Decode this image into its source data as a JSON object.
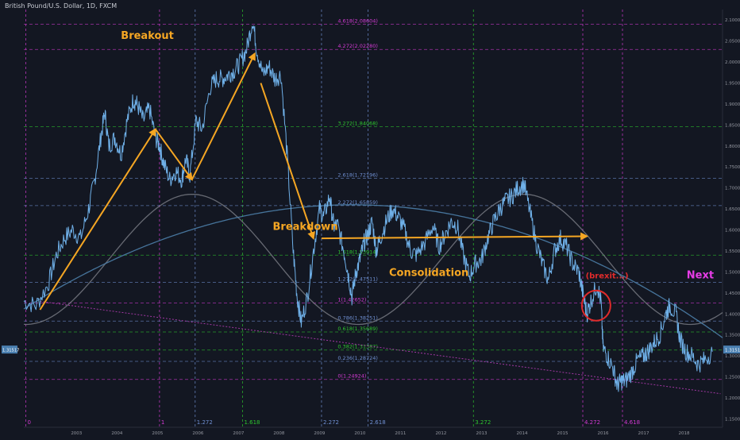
{
  "header": {
    "title": "British Pound/U.S. Dollar, 1D, FXCM"
  },
  "colors": {
    "bg": "#131722",
    "price": "#6fb0e8",
    "arrow": "#f5a623",
    "annotation": "#f5a623",
    "next": "#e63ce6",
    "brexit": "#e02b2b",
    "fib_green": "#2ec42e",
    "fib_magenta": "#d33ad3",
    "fib_blue": "#6f8fd1",
    "fib_gray": "#8a8fa0",
    "sine": "#7d8088",
    "curve_blue": "#4d7ea8",
    "trendline": "#b03bb0"
  },
  "chart_data": {
    "type": "line",
    "title": "British Pound/U.S. Dollar, 1D, FXCM",
    "xlim": [
      2002.2,
      2019.45
    ],
    "ylim": [
      1.13,
      2.125
    ],
    "x_ticks": [
      "2003",
      "2004",
      "2005",
      "2006",
      "2007",
      "2008",
      "2009",
      "2010",
      "2011",
      "2012",
      "2013",
      "2014",
      "2015",
      "2016",
      "2017",
      "2018"
    ],
    "y_ticks": [
      "2.10000",
      "2.05000",
      "2.00000",
      "1.95000",
      "1.90000",
      "1.85000",
      "1.80000",
      "1.75000",
      "1.70000",
      "1.65000",
      "1.60000",
      "1.55000",
      "1.50000",
      "1.45000",
      "1.40000",
      "1.35000",
      "1.30000",
      "1.25000",
      "1.20000",
      "1.15000"
    ],
    "price_tag": "1.31517",
    "series": [
      {
        "values": [
          [
            2002.2,
            1.43
          ],
          [
            2002.5,
            1.42
          ],
          [
            2002.8,
            1.47
          ],
          [
            2003.0,
            1.54
          ],
          [
            2003.2,
            1.58
          ],
          [
            2003.4,
            1.6
          ],
          [
            2003.6,
            1.58
          ],
          [
            2003.8,
            1.65
          ],
          [
            2003.95,
            1.72
          ],
          [
            2004.1,
            1.82
          ],
          [
            2004.2,
            1.88
          ],
          [
            2004.3,
            1.8
          ],
          [
            2004.45,
            1.82
          ],
          [
            2004.6,
            1.78
          ],
          [
            2004.75,
            1.86
          ],
          [
            2004.9,
            1.91
          ],
          [
            2005.0,
            1.9
          ],
          [
            2005.15,
            1.86
          ],
          [
            2005.3,
            1.89
          ],
          [
            2005.45,
            1.82
          ],
          [
            2005.55,
            1.8
          ],
          [
            2005.65,
            1.76
          ],
          [
            2005.8,
            1.72
          ],
          [
            2005.95,
            1.74
          ],
          [
            2006.1,
            1.72
          ],
          [
            2006.2,
            1.77
          ],
          [
            2006.3,
            1.73
          ],
          [
            2006.45,
            1.86
          ],
          [
            2006.6,
            1.84
          ],
          [
            2006.8,
            1.94
          ],
          [
            2006.95,
            1.96
          ],
          [
            2007.1,
            1.96
          ],
          [
            2007.25,
            1.97
          ],
          [
            2007.4,
            1.98
          ],
          [
            2007.55,
            2.0
          ],
          [
            2007.7,
            2.03
          ],
          [
            2007.85,
            2.1
          ],
          [
            2007.95,
            2.03
          ],
          [
            2008.1,
            1.97
          ],
          [
            2008.25,
            1.99
          ],
          [
            2008.4,
            1.96
          ],
          [
            2008.55,
            1.97
          ],
          [
            2008.7,
            1.78
          ],
          [
            2008.85,
            1.55
          ],
          [
            2008.95,
            1.44
          ],
          [
            2009.05,
            1.38
          ],
          [
            2009.2,
            1.44
          ],
          [
            2009.35,
            1.55
          ],
          [
            2009.5,
            1.65
          ],
          [
            2009.6,
            1.63
          ],
          [
            2009.75,
            1.68
          ],
          [
            2009.85,
            1.61
          ],
          [
            2009.95,
            1.61
          ],
          [
            2010.1,
            1.55
          ],
          [
            2010.2,
            1.5
          ],
          [
            2010.3,
            1.44
          ],
          [
            2010.4,
            1.5
          ],
          [
            2010.5,
            1.53
          ],
          [
            2010.6,
            1.57
          ],
          [
            2010.7,
            1.59
          ],
          [
            2010.8,
            1.62
          ],
          [
            2010.9,
            1.55
          ],
          [
            2011.0,
            1.58
          ],
          [
            2011.15,
            1.62
          ],
          [
            2011.3,
            1.65
          ],
          [
            2011.45,
            1.63
          ],
          [
            2011.6,
            1.6
          ],
          [
            2011.75,
            1.55
          ],
          [
            2011.9,
            1.54
          ],
          [
            2012.1,
            1.57
          ],
          [
            2012.3,
            1.61
          ],
          [
            2012.45,
            1.56
          ],
          [
            2012.6,
            1.59
          ],
          [
            2012.75,
            1.62
          ],
          [
            2012.9,
            1.61
          ],
          [
            2013.05,
            1.54
          ],
          [
            2013.2,
            1.49
          ],
          [
            2013.35,
            1.52
          ],
          [
            2013.5,
            1.53
          ],
          [
            2013.65,
            1.58
          ],
          [
            2013.8,
            1.62
          ],
          [
            2013.95,
            1.65
          ],
          [
            2014.1,
            1.67
          ],
          [
            2014.25,
            1.68
          ],
          [
            2014.4,
            1.7
          ],
          [
            2014.55,
            1.71
          ],
          [
            2014.7,
            1.64
          ],
          [
            2014.85,
            1.57
          ],
          [
            2015.0,
            1.52
          ],
          [
            2015.15,
            1.48
          ],
          [
            2015.3,
            1.55
          ],
          [
            2015.45,
            1.58
          ],
          [
            2015.6,
            1.56
          ],
          [
            2015.75,
            1.52
          ],
          [
            2015.9,
            1.5
          ],
          [
            2016.0,
            1.45
          ],
          [
            2016.1,
            1.4
          ],
          [
            2016.2,
            1.43
          ],
          [
            2016.35,
            1.47
          ],
          [
            2016.45,
            1.43
          ],
          [
            2016.5,
            1.32
          ],
          [
            2016.6,
            1.3
          ],
          [
            2016.75,
            1.27
          ],
          [
            2016.85,
            1.23
          ],
          [
            2016.95,
            1.24
          ],
          [
            2017.05,
            1.24
          ],
          [
            2017.2,
            1.26
          ],
          [
            2017.35,
            1.29
          ],
          [
            2017.5,
            1.3
          ],
          [
            2017.6,
            1.31
          ],
          [
            2017.75,
            1.33
          ],
          [
            2017.9,
            1.35
          ],
          [
            2018.05,
            1.4
          ],
          [
            2018.15,
            1.42
          ],
          [
            2018.3,
            1.4
          ],
          [
            2018.4,
            1.34
          ],
          [
            2018.55,
            1.31
          ],
          [
            2018.7,
            1.3
          ],
          [
            2018.85,
            1.28
          ],
          [
            2019.0,
            1.29
          ],
          [
            2019.2,
            1.31
          ]
        ]
      }
    ],
    "fib_time_labels": [
      {
        "x": 2002.25,
        "label": "0",
        "color": "fib_magenta"
      },
      {
        "x": 2005.55,
        "label": "1",
        "color": "fib_magenta"
      },
      {
        "x": 2006.43,
        "label": "1.272",
        "color": "fib_blue"
      },
      {
        "x": 2007.6,
        "label": "1.618",
        "color": "fib_green"
      },
      {
        "x": 2009.55,
        "label": "2.272",
        "color": "fib_blue"
      },
      {
        "x": 2010.7,
        "label": "2.618",
        "color": "fib_blue"
      },
      {
        "x": 2013.3,
        "label": "3.272",
        "color": "fib_green"
      },
      {
        "x": 2016.0,
        "label": "4.272",
        "color": "fib_magenta"
      },
      {
        "x": 2016.98,
        "label": "4.618",
        "color": "fib_magenta"
      }
    ],
    "fib_levels": [
      {
        "y": 2.09,
        "label": "4.618(2.08604)",
        "color": "fib_magenta"
      },
      {
        "y": 2.03,
        "label": "4.272(2.02280)",
        "color": "fib_magenta"
      },
      {
        "y": 1.846,
        "label": "3.272(1.84068)",
        "color": "fib_green"
      },
      {
        "y": 1.723,
        "label": "2.618(1.72196)",
        "color": "fib_blue"
      },
      {
        "y": 1.658,
        "label": "2.272(1.65859)",
        "color": "fib_blue"
      },
      {
        "y": 1.54,
        "label": "1.618(1.53914)",
        "color": "fib_green"
      },
      {
        "y": 1.475,
        "label": "1.272(1.47511)",
        "color": "fib_blue"
      },
      {
        "y": 1.426,
        "label": "1(1.42652)",
        "color": "fib_magenta"
      },
      {
        "y": 1.383,
        "label": "0.786(1.38251)",
        "color": "fib_blue"
      },
      {
        "y": 1.357,
        "label": "0.618(1.35689)",
        "color": "fib_green"
      },
      {
        "y": 1.314,
        "label": "0.382(1.31387)",
        "color": "fib_green"
      },
      {
        "y": 1.287,
        "label": "0.236(1.28724)",
        "color": "fib_blue"
      },
      {
        "y": 1.244,
        "label": "0(1.24924)",
        "color": "fib_magenta"
      }
    ],
    "annotations": [
      {
        "x": 2005.25,
        "y": 2.055,
        "text": "Breakout",
        "color": "annotation"
      },
      {
        "x": 2009.15,
        "y": 1.6,
        "text": "Breakdown",
        "color": "annotation"
      },
      {
        "x": 2012.2,
        "y": 1.49,
        "text": "Consolidation",
        "color": "annotation"
      },
      {
        "x": 2016.6,
        "y": 1.485,
        "text": "(brexit...)",
        "color": "brexit"
      },
      {
        "x": 2018.9,
        "y": 1.485,
        "text": "Next",
        "color": "next"
      }
    ],
    "arrows": [
      {
        "from": [
          2002.6,
          1.41
        ],
        "to": [
          2005.45,
          1.84
        ]
      },
      {
        "from": [
          2005.45,
          1.84
        ],
        "to": [
          2006.35,
          1.72
        ]
      },
      {
        "from": [
          2006.35,
          1.72
        ],
        "to": [
          2007.9,
          2.02
        ]
      },
      {
        "from": [
          2008.05,
          1.95
        ],
        "to": [
          2009.35,
          1.58
        ]
      },
      {
        "from": [
          2009.55,
          1.58
        ],
        "to": [
          2016.1,
          1.585
        ]
      }
    ],
    "brexit_circle": {
      "x": 2016.33,
      "y": 1.42
    },
    "grid": false
  }
}
